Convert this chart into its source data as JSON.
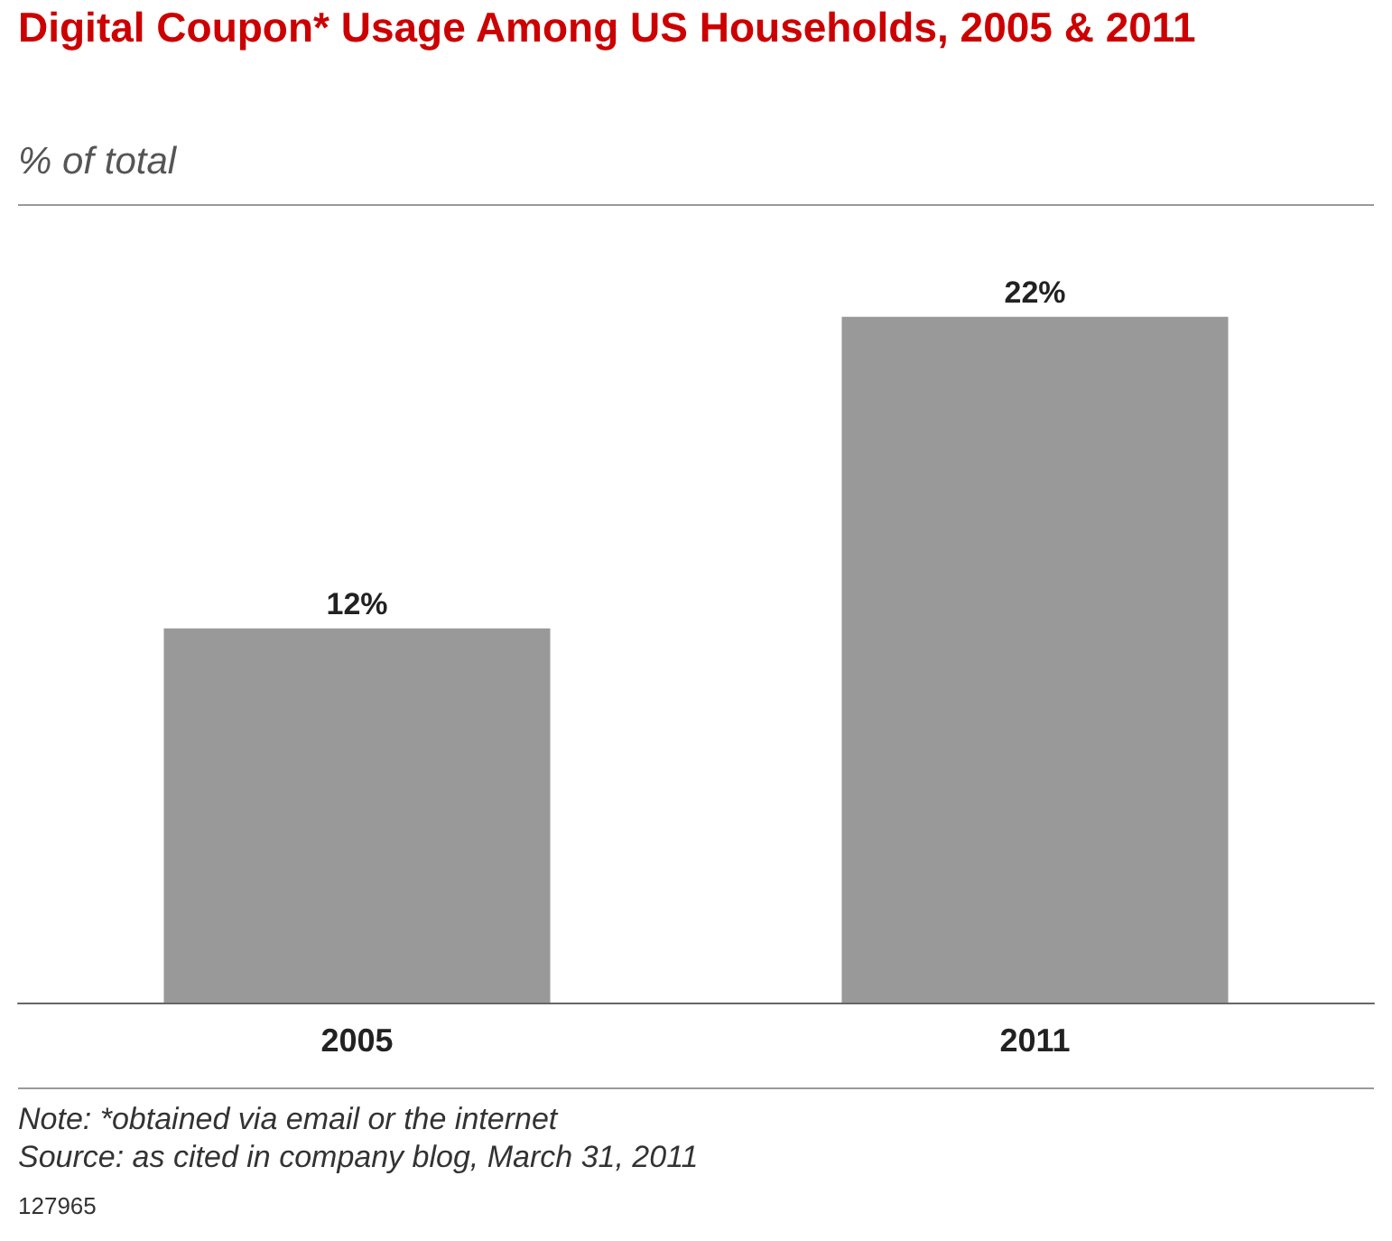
{
  "chart_data": {
    "type": "bar",
    "title": "Digital Coupon* Usage Among US Households, 2005 & 2011",
    "subtitle": "% of total",
    "categories": [
      "2005",
      "2011"
    ],
    "values": [
      12,
      22
    ],
    "color": "#999999",
    "value_labels": [
      "12%",
      "22%"
    ],
    "annotations": [
      "Note: *obtained via email or the internet",
      "Source: as cited in company blog, March 31, 2011",
      "127965"
    ]
  }
}
